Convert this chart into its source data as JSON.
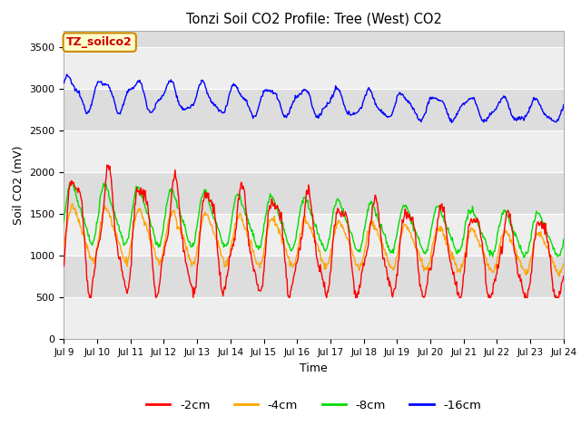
{
  "title": "Tonzi Soil CO2 Profile: Tree (West) CO2",
  "xlabel": "Time",
  "ylabel": "Soil CO2 (mV)",
  "ylim": [
    0,
    3700
  ],
  "yticks": [
    0,
    500,
    1000,
    1500,
    2000,
    2500,
    3000,
    3500
  ],
  "colors": {
    "-2cm": "#ff0000",
    "-4cm": "#ffa500",
    "-8cm": "#00dd00",
    "-16cm": "#0000ff"
  },
  "legend_labels": [
    "-2cm",
    "-4cm",
    "-8cm",
    "-16cm"
  ],
  "annotation_label": "TZ_soilco2",
  "annotation_bg": "#ffffcc",
  "annotation_border": "#cc8800",
  "annotation_text_color": "#cc0000",
  "background_color": "#ffffff",
  "plot_bg_light": "#eeeeee",
  "plot_bg_dark": "#dddddd",
  "n_points": 720,
  "x_start": 9.0,
  "x_end": 24.0,
  "xtick_positions": [
    9,
    10,
    11,
    12,
    13,
    14,
    15,
    16,
    17,
    18,
    19,
    20,
    21,
    22,
    23,
    24
  ],
  "xtick_labels": [
    "Jul 9",
    "Jul 10",
    "Jul 11",
    "Jul 12",
    "Jul 13",
    "Jul 14",
    "Jul 15",
    "Jul 16",
    "Jul 17",
    "Jul 18",
    "Jul 19",
    "Jul 20",
    "Jul 21",
    "Jul 22",
    "Jul 23",
    "Jul 24"
  ],
  "band_edges": [
    0,
    500,
    1000,
    1500,
    2000,
    2500,
    3000,
    3500,
    3700
  ]
}
